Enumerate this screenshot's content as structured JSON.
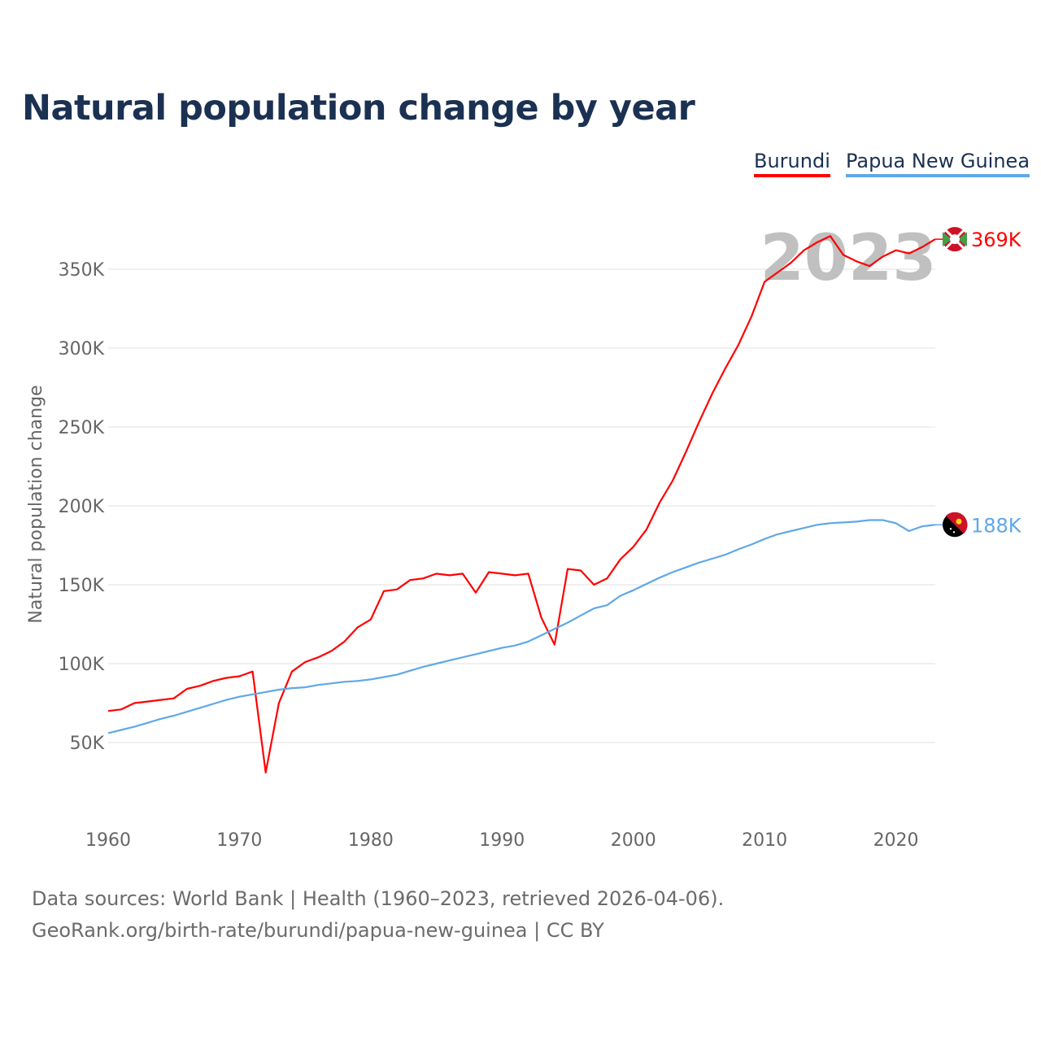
{
  "title": "Natural population change by year",
  "footer": {
    "line1": "Data sources: World Bank | Health (1960–2023, retrieved 2026-04-06).",
    "line2": "GeoRank.org/birth-rate/burundi/papua-new-guinea | CC BY"
  },
  "chart_data": {
    "type": "line",
    "title": "Natural population change by year",
    "xlabel": "",
    "ylabel": "Natural population change",
    "xlim": [
      1960,
      2023
    ],
    "ylim": [
      0,
      370000
    ],
    "x_ticks": [
      1960,
      1970,
      1980,
      1990,
      2000,
      2010,
      2020
    ],
    "y_ticks": [
      {
        "v": 50000,
        "label": "50K"
      },
      {
        "v": 100000,
        "label": "100K"
      },
      {
        "v": 150000,
        "label": "150K"
      },
      {
        "v": 200000,
        "label": "200K"
      },
      {
        "v": 250000,
        "label": "250K"
      },
      {
        "v": 300000,
        "label": "300K"
      },
      {
        "v": 350000,
        "label": "350K"
      }
    ],
    "grid": true,
    "legend_position": "top-right",
    "year_label": "2023",
    "x_start": 1960,
    "series": [
      {
        "name": "Burundi",
        "color": "#ff0000",
        "end_label": "369K",
        "flag": "burundi-flag",
        "values_k": [
          70,
          71,
          75,
          76,
          77,
          78,
          84,
          86,
          89,
          91,
          92,
          95,
          31,
          75,
          95,
          101,
          104,
          108,
          114,
          123,
          128,
          146,
          147,
          153,
          154,
          157,
          156,
          157,
          145,
          158,
          157,
          156,
          157,
          129,
          112,
          160,
          159,
          150,
          154,
          166,
          174,
          185,
          202,
          216,
          234,
          253,
          271,
          287,
          302,
          320,
          342,
          348,
          354,
          362,
          367,
          371,
          359,
          355,
          352,
          358,
          362,
          360,
          364,
          369
        ]
      },
      {
        "name": "Papua New Guinea",
        "color": "#5fa8e8",
        "end_label": "188K",
        "flag": "papua-new-guinea-flag",
        "values_k": [
          56,
          58,
          60,
          62.5,
          65,
          67,
          69.5,
          72,
          74.5,
          77,
          79,
          80.5,
          82,
          83.5,
          84.5,
          85,
          86.5,
          87.5,
          88.5,
          89,
          90,
          91.5,
          93,
          95.5,
          98,
          100,
          102,
          104,
          106,
          108,
          110,
          111.5,
          114,
          118,
          122,
          126,
          130.5,
          135,
          137,
          143,
          146.5,
          150.5,
          154.5,
          158,
          161,
          164,
          166.5,
          169,
          172.5,
          175.5,
          179,
          182,
          184,
          186,
          188,
          189,
          189.5,
          190,
          191,
          191,
          189,
          184,
          187,
          188
        ]
      }
    ]
  }
}
